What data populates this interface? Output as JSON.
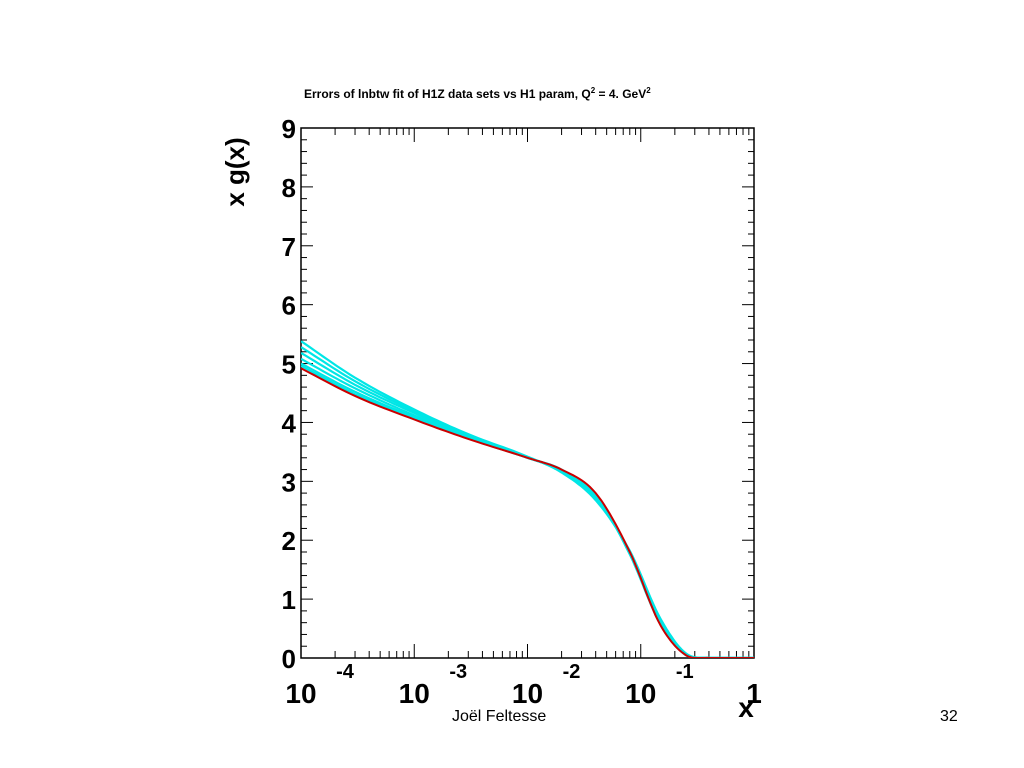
{
  "chart_data": {
    "type": "line",
    "title": {
      "text": "Errors of lnbtw fit of H1Z data sets vs H1 param, Q",
      "q_exp": "2",
      "text2": " = 4. GeV",
      "gev_exp": "2"
    },
    "xlabel": "x",
    "ylabel": "x g(x)",
    "xscale": "log",
    "xlim": [
      0.0001,
      1
    ],
    "ylim": [
      0,
      9
    ],
    "y_ticks": [
      "0",
      "1",
      "2",
      "3",
      "4",
      "5",
      "6",
      "7",
      "8",
      "9"
    ],
    "x_ticks": [
      {
        "base": "10",
        "exp": "-4"
      },
      {
        "base": "10",
        "exp": "-3"
      },
      {
        "base": "10",
        "exp": "-2"
      },
      {
        "base": "10",
        "exp": "-1"
      },
      {
        "base": "1",
        "exp": ""
      }
    ],
    "colors": {
      "h1_param": "#cc0000",
      "error_band": "#00e6e6"
    },
    "series": [
      {
        "x": [
          0.0001,
          0.0003,
          0.001,
          0.003,
          0.01,
          0.02,
          0.04,
          0.08,
          0.15,
          0.25,
          0.4,
          1
        ],
        "y": [
          4.92,
          4.45,
          4.05,
          3.72,
          3.4,
          3.2,
          2.8,
          1.8,
          0.55,
          0.05,
          0.0,
          0.0
        ],
        "color": "#cc0000"
      },
      {
        "x": [
          0.0001,
          0.0003,
          0.001,
          0.003,
          0.01,
          0.02,
          0.04,
          0.08,
          0.15,
          0.25,
          0.4,
          1
        ],
        "y": [
          5.38,
          4.76,
          4.22,
          3.8,
          3.42,
          3.15,
          2.68,
          1.82,
          0.66,
          0.08,
          0.0,
          0.0
        ],
        "color": "#00e6e6"
      },
      {
        "x": [
          0.0001,
          0.0003,
          0.001,
          0.003,
          0.01,
          0.02,
          0.04,
          0.08,
          0.15,
          0.25,
          0.4,
          1
        ],
        "y": [
          5.28,
          4.7,
          4.19,
          3.78,
          3.41,
          3.16,
          2.7,
          1.8,
          0.62,
          0.07,
          0.0,
          0.0
        ],
        "color": "#00e6e6"
      },
      {
        "x": [
          0.0001,
          0.0003,
          0.001,
          0.003,
          0.01,
          0.02,
          0.04,
          0.08,
          0.15,
          0.25,
          0.4,
          1
        ],
        "y": [
          5.18,
          4.64,
          4.16,
          3.77,
          3.41,
          3.17,
          2.72,
          1.79,
          0.6,
          0.06,
          0.0,
          0.0
        ],
        "color": "#00e6e6"
      },
      {
        "x": [
          0.0001,
          0.0003,
          0.001,
          0.003,
          0.01,
          0.02,
          0.04,
          0.08,
          0.15,
          0.25,
          0.4,
          1
        ],
        "y": [
          5.08,
          4.58,
          4.12,
          3.75,
          3.4,
          3.18,
          2.74,
          1.78,
          0.58,
          0.06,
          0.0,
          0.0
        ],
        "color": "#00e6e6"
      },
      {
        "x": [
          0.0001,
          0.0003,
          0.001,
          0.003,
          0.01,
          0.02,
          0.04,
          0.08,
          0.15,
          0.25,
          0.4,
          1
        ],
        "y": [
          5.0,
          4.52,
          4.09,
          3.74,
          3.4,
          3.19,
          2.76,
          1.77,
          0.57,
          0.06,
          0.0,
          0.0
        ],
        "color": "#00e6e6"
      },
      {
        "x": [
          0.0001,
          0.0003,
          0.001,
          0.003,
          0.01,
          0.02,
          0.04,
          0.08,
          0.15,
          0.25,
          0.4,
          1
        ],
        "y": [
          4.96,
          4.48,
          4.07,
          3.73,
          3.4,
          3.2,
          2.77,
          1.76,
          0.56,
          0.05,
          0.0,
          0.0
        ],
        "color": "#00e6e6"
      }
    ]
  },
  "footer": {
    "author": "Joël Feltesse",
    "page": "32"
  }
}
